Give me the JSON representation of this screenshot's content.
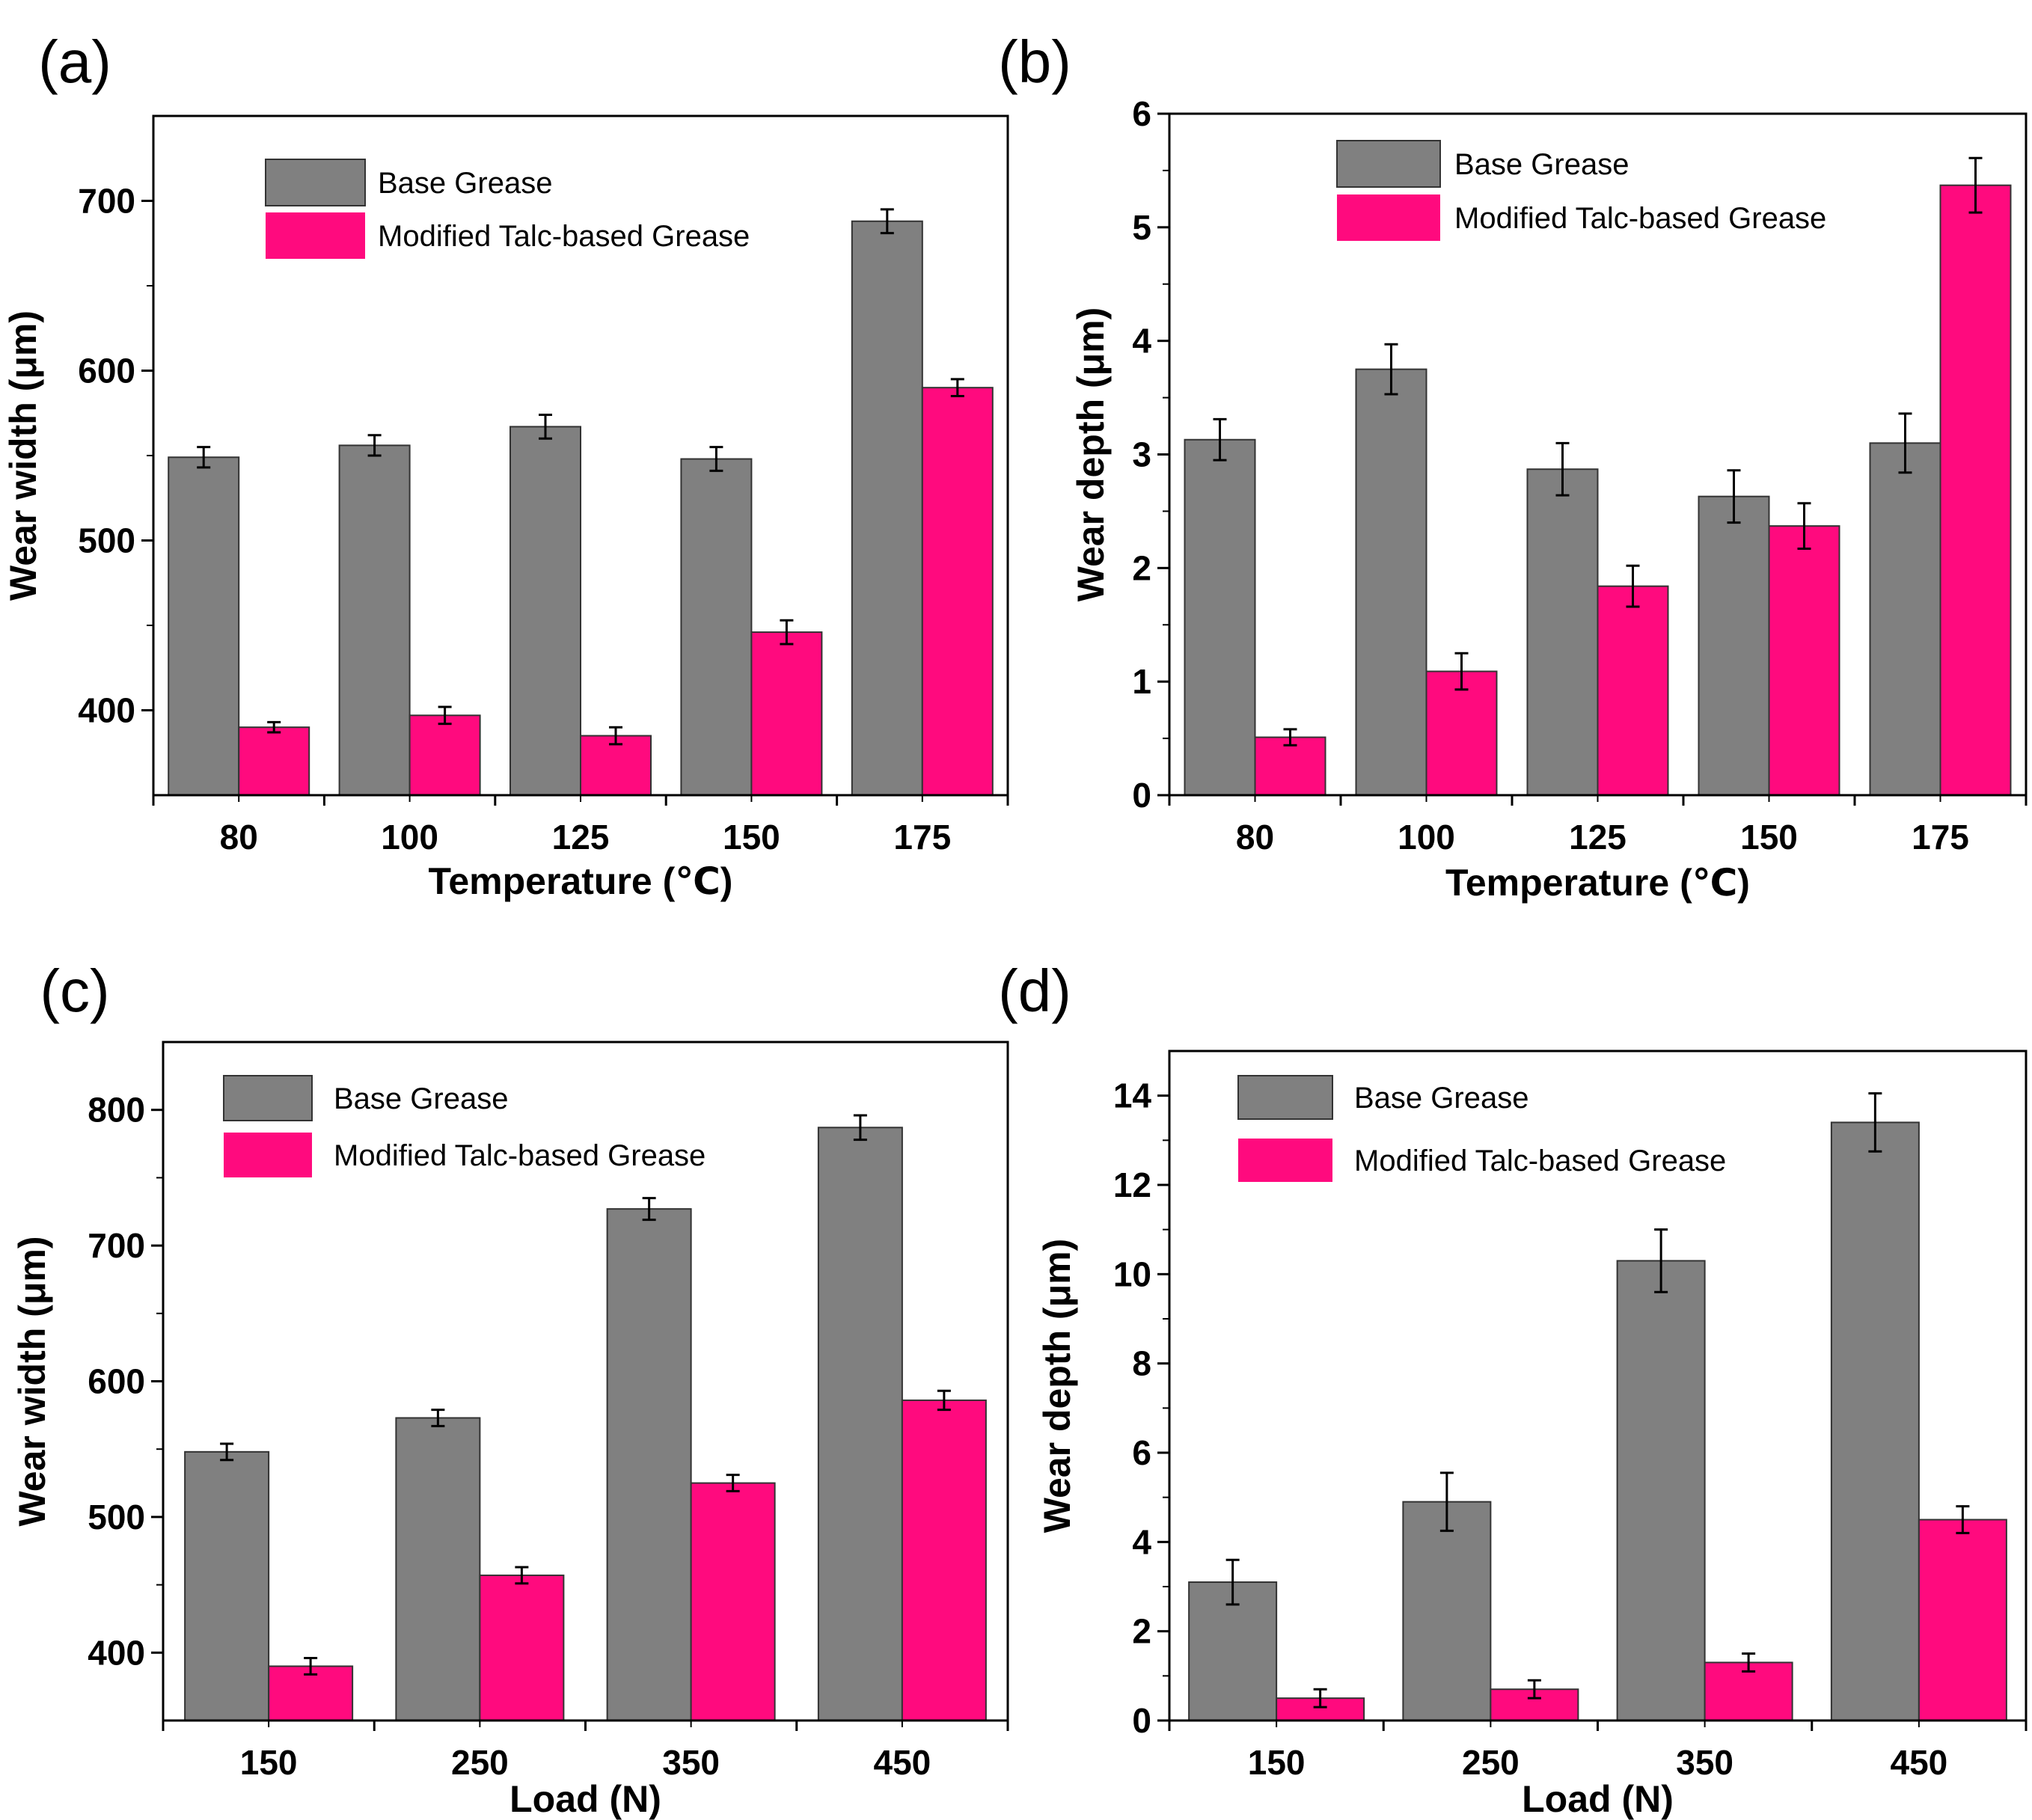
{
  "colors": {
    "base": "#808080",
    "modified": "#ff0a7e",
    "axis": "#000000",
    "background": "#ffffff"
  },
  "chart_data": [
    {
      "panel": "(a)",
      "type": "bar",
      "categories": [
        "80",
        "100",
        "125",
        "150",
        "175"
      ],
      "series": [
        {
          "name": "Base Grease",
          "color": "#808080",
          "values": [
            549,
            556,
            567,
            548,
            688
          ],
          "errors": [
            6,
            6,
            7,
            7,
            7
          ]
        },
        {
          "name": "Modified Talc-based Grease",
          "color": "#ff0a7e",
          "values": [
            390,
            397,
            385,
            446,
            590
          ],
          "errors": [
            3,
            5,
            5,
            7,
            5
          ]
        }
      ],
      "xlabel": "Temperature (℃)",
      "ylabel": "Wear width (μm)",
      "ylim": [
        350,
        750
      ],
      "yticks": [
        400,
        500,
        600,
        700
      ],
      "legend": "top"
    },
    {
      "panel": "(b)",
      "type": "bar",
      "categories": [
        "80",
        "100",
        "125",
        "150",
        "175"
      ],
      "series": [
        {
          "name": "Base Grease",
          "color": "#808080",
          "values": [
            3.13,
            3.75,
            2.87,
            2.63,
            3.1
          ],
          "errors": [
            0.18,
            0.22,
            0.23,
            0.23,
            0.26
          ]
        },
        {
          "name": "Modified Talc-based Grease",
          "color": "#ff0a7e",
          "values": [
            0.51,
            1.09,
            1.84,
            2.37,
            5.37
          ],
          "errors": [
            0.07,
            0.16,
            0.18,
            0.2,
            0.24
          ]
        }
      ],
      "xlabel": "Temperature (℃)",
      "ylabel": "Wear depth (μm)",
      "ylim": [
        0,
        6
      ],
      "yticks": [
        0,
        1,
        2,
        3,
        4,
        5,
        6
      ],
      "legend": "top"
    },
    {
      "panel": "(c)",
      "type": "bar",
      "categories": [
        "150",
        "250",
        "350",
        "450"
      ],
      "series": [
        {
          "name": "Base Grease",
          "color": "#808080",
          "values": [
            548,
            573,
            727,
            787
          ],
          "errors": [
            6,
            6,
            8,
            9
          ]
        },
        {
          "name": "Modified Talc-based Grease",
          "color": "#ff0a7e",
          "values": [
            390,
            457,
            525,
            586
          ],
          "errors": [
            6,
            6,
            6,
            7
          ]
        }
      ],
      "xlabel": "Load (N)",
      "ylabel": "Wear width (μm)",
      "ylim": [
        350,
        850
      ],
      "yticks": [
        400,
        500,
        600,
        700,
        800
      ],
      "legend": "top"
    },
    {
      "panel": "(d)",
      "type": "bar",
      "categories": [
        "150",
        "250",
        "350",
        "450"
      ],
      "series": [
        {
          "name": "Base Grease",
          "color": "#808080",
          "values": [
            3.1,
            4.9,
            10.3,
            13.4
          ],
          "errors": [
            0.5,
            0.65,
            0.7,
            0.65
          ]
        },
        {
          "name": "Modified Talc-based Grease",
          "color": "#ff0a7e",
          "values": [
            0.5,
            0.7,
            1.3,
            4.5
          ],
          "errors": [
            0.2,
            0.2,
            0.2,
            0.3
          ]
        }
      ],
      "xlabel": "Load (N)",
      "ylabel": "Wear depth (μm)",
      "ylim": [
        0,
        15
      ],
      "yticks": [
        0,
        2,
        4,
        6,
        8,
        10,
        12,
        14
      ],
      "legend": "top"
    }
  ]
}
